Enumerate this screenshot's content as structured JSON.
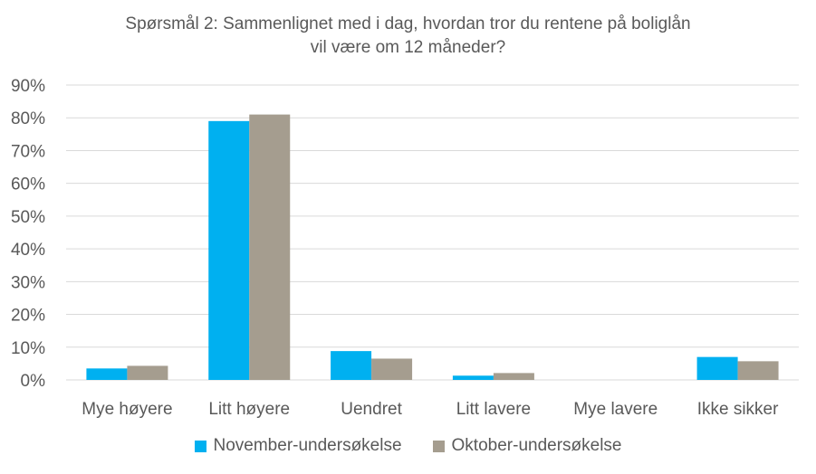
{
  "chart_data": {
    "type": "bar",
    "title": "Spørsmål 2: Sammenlignet  med i dag, hvordan tror du rentene på boliglån vil være om 12 måneder?",
    "title_lines": [
      "Spørsmål 2: Sammenlignet  med i dag, hvordan tror du rentene på boliglån",
      "vil være om 12 måneder?"
    ],
    "categories": [
      "Mye høyere",
      "Litt høyere",
      "Uendret",
      "Litt lavere",
      "Mye lavere",
      "Ikke sikker"
    ],
    "series": [
      {
        "name": "November-undersøkelse",
        "color": "#00B0F0",
        "values": [
          3.5,
          79,
          8.8,
          1.3,
          0,
          7.0
        ]
      },
      {
        "name": "Oktober-undersøkelse",
        "color": "#A59D8F",
        "values": [
          4.3,
          81,
          6.5,
          2.1,
          0,
          5.7
        ]
      }
    ],
    "yticks": [
      "0%",
      "10%",
      "20%",
      "30%",
      "40%",
      "50%",
      "60%",
      "70%",
      "80%",
      "90%"
    ],
    "ylim": [
      0,
      90
    ],
    "grid": true,
    "legend_position": "bottom"
  }
}
